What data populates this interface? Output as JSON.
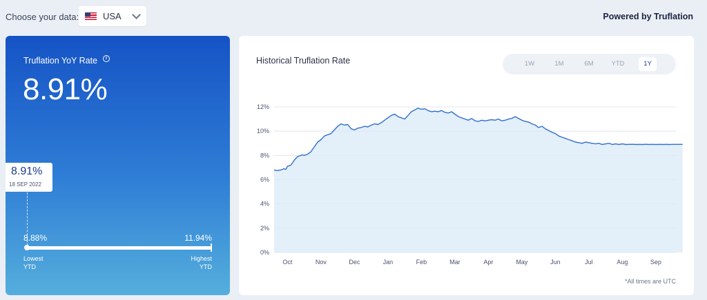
{
  "header": {
    "choose_label": "Choose your data:",
    "country": "USA",
    "flag_icon": "us-flag-icon",
    "powered_by": "Powered by Truflation"
  },
  "rate_card": {
    "title": "Truflation YoY Rate",
    "info_icon": "info-icon",
    "current_rate": "8.91%",
    "callout_value": "8.91%",
    "callout_date": "18 SEP 2022",
    "lowest_value": "8.88%",
    "highest_value": "11.94%",
    "lowest_label": [
      "Lowest",
      "YTD"
    ],
    "highest_label": [
      "Highest",
      "YTD"
    ],
    "gradient_top": "#1553c5",
    "gradient_bottom": "#55aedc"
  },
  "chart_card": {
    "title": "Historical Truflation Rate",
    "tabs": [
      "1W",
      "1M",
      "6M",
      "YTD",
      "1Y"
    ],
    "active_tab": "1Y",
    "footnote": "*All times are UTC"
  },
  "chart_data": {
    "type": "area",
    "ylim": [
      0,
      12
    ],
    "y_ticks": [
      0,
      2,
      4,
      6,
      8,
      10,
      12
    ],
    "y_tick_labels": [
      "0%",
      "2%",
      "4%",
      "6%",
      "8%",
      "10%",
      "12%"
    ],
    "x_ticks": [
      "Oct",
      "Nov",
      "Dec",
      "Jan",
      "Feb",
      "Mar",
      "Apr",
      "May",
      "Jun",
      "Jul",
      "Aug",
      "Sep"
    ],
    "grid": true,
    "line_color": "#2f6fd0",
    "fill_color": "#e3eff9",
    "series": [
      {
        "x": [
          0,
          0.1,
          0.2,
          0.3,
          0.35,
          0.4,
          0.5,
          0.6,
          0.7,
          0.8,
          0.85,
          0.9,
          1.0,
          1.1,
          1.2,
          1.3,
          1.4,
          1.5,
          1.6,
          1.7,
          1.8,
          1.9,
          2.0,
          2.1,
          2.2,
          2.3,
          2.4,
          2.5,
          2.6,
          2.7,
          2.8,
          2.9,
          3.0,
          3.1,
          3.2,
          3.3,
          3.4,
          3.5,
          3.6,
          3.7,
          3.8,
          3.9,
          4.0,
          4.1,
          4.2,
          4.3,
          4.4,
          4.5,
          4.6,
          4.7,
          4.8,
          4.9,
          5.0,
          5.1,
          5.2,
          5.3,
          5.4,
          5.5,
          5.6,
          5.7,
          5.8,
          5.9,
          6.0,
          6.1,
          6.2,
          6.3,
          6.4,
          6.5,
          6.6,
          6.7,
          6.8,
          6.9,
          7.0,
          7.1,
          7.2,
          7.3,
          7.4,
          7.5,
          7.6,
          7.7,
          7.8,
          7.9,
          8.0,
          8.1,
          8.2,
          8.3,
          8.4,
          8.5,
          8.6,
          8.7,
          8.8,
          8.9,
          9.0,
          9.1,
          9.2,
          9.3,
          9.4,
          9.5,
          9.6,
          9.7,
          9.8,
          9.9,
          10.0,
          10.1,
          10.2,
          10.3,
          10.4,
          10.5,
          10.6,
          10.7,
          10.8,
          10.9,
          11.0,
          11.1,
          11.2,
          11.3,
          11.4,
          11.5,
          11.6,
          11.7,
          11.8,
          11.9,
          12.0,
          12.1,
          12.2
        ],
        "y": [
          6.8,
          6.75,
          6.8,
          6.9,
          6.85,
          7.1,
          7.2,
          7.6,
          7.9,
          8.0,
          8.05,
          8.0,
          8.1,
          8.3,
          8.7,
          9.1,
          9.3,
          9.6,
          9.7,
          9.8,
          10.1,
          10.4,
          10.6,
          10.5,
          10.55,
          10.2,
          10.1,
          10.25,
          10.3,
          10.4,
          10.35,
          10.5,
          10.6,
          10.55,
          10.7,
          10.9,
          11.1,
          11.3,
          11.4,
          11.2,
          11.1,
          11.0,
          11.3,
          11.6,
          11.75,
          11.9,
          11.8,
          11.85,
          11.7,
          11.6,
          11.65,
          11.6,
          11.7,
          11.55,
          11.5,
          11.6,
          11.4,
          11.2,
          11.1,
          11.0,
          10.9,
          11.05,
          10.85,
          10.8,
          10.9,
          10.85,
          10.9,
          10.95,
          10.9,
          11.0,
          10.85,
          10.9,
          11.0,
          11.05,
          11.2,
          11.05,
          10.9,
          10.8,
          10.75,
          10.6,
          10.5,
          10.3,
          10.4,
          10.2,
          10.05,
          9.9,
          9.8,
          9.6,
          9.5,
          9.4,
          9.3,
          9.2,
          9.1,
          9.05,
          9.0,
          9.1,
          9.05,
          9.0,
          8.95,
          9.0,
          8.9,
          8.95,
          9.0,
          8.9,
          8.95,
          8.9,
          8.95,
          8.9,
          8.91,
          8.92,
          8.9,
          8.91,
          8.9,
          8.92,
          8.9,
          8.91,
          8.9,
          8.91,
          8.9,
          8.91,
          8.9,
          8.91,
          8.91,
          8.91,
          8.91
        ]
      }
    ]
  }
}
